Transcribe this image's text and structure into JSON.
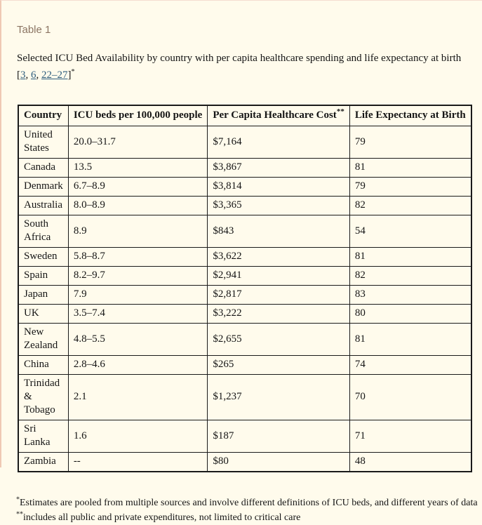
{
  "colors": {
    "page_background": "#fffbec",
    "left_edge_border": "#efc9b4",
    "table_label_text": "#8c7563",
    "reference_link": "#2e5e7e",
    "table_border": "#1a1a1a",
    "body_text": "#151515"
  },
  "header": {
    "table_label": "Table 1"
  },
  "caption": {
    "prefix": "Selected ICU Bed Availability by country with per capita healthcare spending and life expectancy at birth [",
    "links": [
      "3",
      "6",
      "22–27"
    ],
    "separator": ", ",
    "suffix": "]",
    "footnote_marker": "*"
  },
  "table": {
    "columns": [
      "Country",
      "ICU beds per 100,000 people",
      "Per Capita Healthcare Cost",
      "Life Expectancy at Birth"
    ],
    "cost_superscript": "**",
    "rows": [
      [
        "United States",
        "20.0–31.7",
        "$7,164",
        "79"
      ],
      [
        "Canada",
        "13.5",
        "$3,867",
        "81"
      ],
      [
        "Denmark",
        "6.7–8.9",
        "$3,814",
        "79"
      ],
      [
        "Australia",
        "8.0–8.9",
        "$3,365",
        "82"
      ],
      [
        "South Africa",
        "8.9",
        "$843",
        "54"
      ],
      [
        "Sweden",
        "5.8–8.7",
        "$3,622",
        "81"
      ],
      [
        "Spain",
        "8.2–9.7",
        "$2,941",
        "82"
      ],
      [
        "Japan",
        "7.9",
        "$2,817",
        "83"
      ],
      [
        "UK",
        "3.5–7.4",
        "$3,222",
        "80"
      ],
      [
        "New Zealand",
        "4.8–5.5",
        "$2,655",
        "81"
      ],
      [
        "China",
        "2.8–4.6",
        "$265",
        "74"
      ],
      [
        "Trinidad & Tobago",
        "2.1",
        "$1,237",
        "70"
      ],
      [
        "Sri Lanka",
        "1.6",
        "$187",
        "71"
      ],
      [
        "Zambia",
        "--",
        "$80",
        "48"
      ]
    ]
  },
  "footnotes": [
    {
      "marker": "*",
      "text": "Estimates are pooled from multiple sources and involve different definitions of ICU beds, and different years of data"
    },
    {
      "marker": "**",
      "text": "includes all public and private expenditures, not limited to critical care"
    }
  ]
}
